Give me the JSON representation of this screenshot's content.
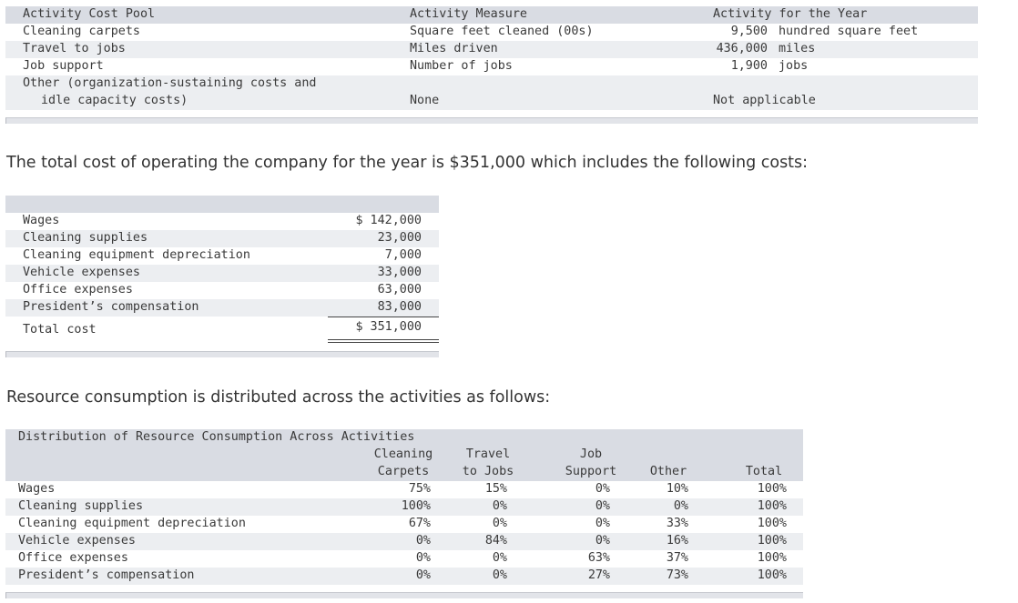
{
  "table1": {
    "headers": [
      "Activity Cost Pool",
      "Activity Measure",
      "Activity for the Year"
    ],
    "rows": [
      {
        "pool": "Cleaning carpets",
        "measure": "Square feet cleaned (00s)",
        "num": "9,500",
        "unit": "hundred square feet"
      },
      {
        "pool": "Travel to jobs",
        "measure": "Miles driven",
        "num": "436,000",
        "unit": "miles"
      },
      {
        "pool": "Job support",
        "measure": "Number of jobs",
        "num": "1,900",
        "unit": "jobs"
      }
    ],
    "other": {
      "pool_line1": "Other (organization-sustaining costs and",
      "pool_line2": "idle capacity costs)",
      "measure": "None",
      "activity": "Not applicable"
    }
  },
  "para1": "The total cost of operating the company for the year is $351,000 which includes the following costs:",
  "table2": {
    "rows": [
      {
        "label": "Wages",
        "value": "$ 142,000"
      },
      {
        "label": "Cleaning supplies",
        "value": "23,000"
      },
      {
        "label": "Cleaning equipment depreciation",
        "value": "7,000"
      },
      {
        "label": "Vehicle expenses",
        "value": "33,000"
      },
      {
        "label": "Office expenses",
        "value": "63,000"
      },
      {
        "label": "President’s compensation",
        "value": "83,000"
      }
    ],
    "total_label": "Total cost",
    "total_value": "$ 351,000"
  },
  "para2": "Resource consumption is distributed across the activities as follows:",
  "table3": {
    "title": "Distribution of Resource Consumption Across Activities",
    "col_heads": [
      {
        "l1": "Cleaning",
        "l2": "Carpets"
      },
      {
        "l1": "Travel",
        "l2": "to Jobs"
      },
      {
        "l1": "Job",
        "l2": "Support"
      },
      {
        "l1": "",
        "l2": "Other"
      },
      {
        "l1": "",
        "l2": "Total"
      }
    ],
    "rows": [
      {
        "label": "Wages",
        "v": [
          "75%",
          "15%",
          "0%",
          "10%",
          "100%"
        ]
      },
      {
        "label": "Cleaning supplies",
        "v": [
          "100%",
          "0%",
          "0%",
          "0%",
          "100%"
        ]
      },
      {
        "label": "Cleaning equipment depreciation",
        "v": [
          "67%",
          "0%",
          "0%",
          "33%",
          "100%"
        ]
      },
      {
        "label": "Vehicle expenses",
        "v": [
          "0%",
          "84%",
          "0%",
          "16%",
          "100%"
        ]
      },
      {
        "label": "Office expenses",
        "v": [
          "0%",
          "0%",
          "63%",
          "37%",
          "100%"
        ]
      },
      {
        "label": "President’s compensation",
        "v": [
          "0%",
          "0%",
          "27%",
          "73%",
          "100%"
        ]
      }
    ]
  }
}
